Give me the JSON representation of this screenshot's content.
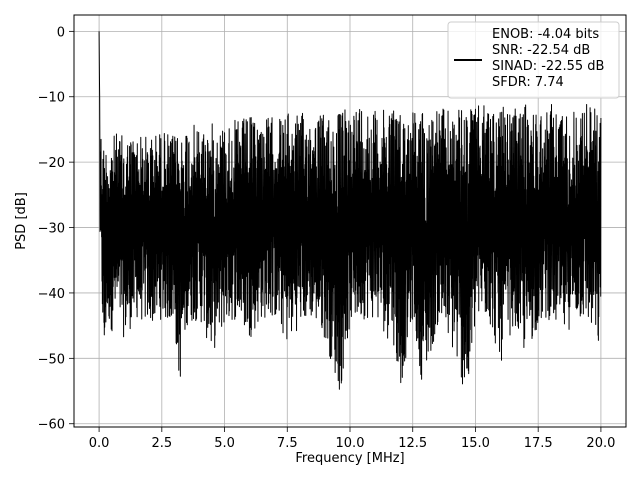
{
  "chart_data": {
    "type": "line",
    "title": "",
    "xlabel": "Frequency [MHz]",
    "ylabel": "PSD [dB]",
    "xlim": [
      -1.0,
      21.0
    ],
    "ylim": [
      -60.5,
      2.5
    ],
    "xticks": [
      0.0,
      2.5,
      5.0,
      7.5,
      10.0,
      12.5,
      15.0,
      17.5,
      20.0
    ],
    "xtick_labels": [
      "0.0",
      "2.5",
      "5.0",
      "7.5",
      "10.0",
      "12.5",
      "15.0",
      "17.5",
      "20.0"
    ],
    "yticks": [
      0,
      -10,
      -20,
      -30,
      -40,
      -50,
      -60
    ],
    "ytick_labels": [
      "0",
      "−10",
      "−20",
      "−30",
      "−40",
      "−50",
      "−60"
    ],
    "grid": true,
    "legend_placement": "upper right",
    "series": [
      {
        "name": "ENOB: -4.04 bits\nSNR: -22.54 dB\nSINAD: -22.55 dB\nSFDR: 7.74",
        "color": "#000000",
        "x": [
          0.0,
          0.02,
          0.05,
          0.1,
          0.2,
          0.3,
          0.5,
          0.7,
          1.0,
          1.5,
          2.0,
          2.5,
          3.0,
          3.2,
          3.5,
          4.0,
          4.5,
          5.0,
          5.5,
          6.0,
          6.5,
          7.0,
          7.5,
          8.0,
          8.5,
          9.0,
          9.6,
          10.0,
          10.5,
          11.0,
          11.5,
          11.6,
          12.0,
          12.5,
          12.9,
          13.5,
          14.0,
          14.7,
          15.0,
          15.5,
          16.0,
          16.5,
          17.0,
          17.5,
          18.0,
          18.5,
          19.0,
          19.5,
          20.0
        ],
        "y_upper": [
          0,
          -10,
          -12,
          -17,
          -16.5,
          -17,
          -16,
          -15.5,
          -16,
          -15.5,
          -16,
          -15,
          -16,
          -15,
          -14,
          -14.5,
          -14,
          -14,
          -13.5,
          -13,
          -13,
          -13,
          -12.5,
          -12.5,
          -12.5,
          -12.5,
          -12,
          -11.5,
          -10.5,
          -12,
          -12,
          -9.5,
          -12,
          -11.5,
          -12,
          -11.5,
          -12,
          -11.5,
          -11.5,
          -11,
          -11.5,
          -12,
          -11,
          -12,
          -11,
          -12,
          -12,
          -10.5,
          -12
        ],
        "y_lower": [
          -2,
          -30,
          -36,
          -40,
          -53,
          -44,
          -46,
          -44,
          -47,
          -44,
          -45,
          -44,
          -45,
          -54.5,
          -45,
          -44,
          -49.5,
          -45,
          -44,
          -47,
          -44,
          -44,
          -48,
          -45,
          -44,
          -47,
          -55.5,
          -45,
          -44,
          -44,
          -47,
          -44,
          -55,
          -44,
          -54.5,
          -45,
          -48,
          -57,
          -45,
          -44,
          -51,
          -45,
          -50,
          -45,
          -44,
          -47,
          -44,
          -45,
          -50
        ]
      }
    ]
  }
}
